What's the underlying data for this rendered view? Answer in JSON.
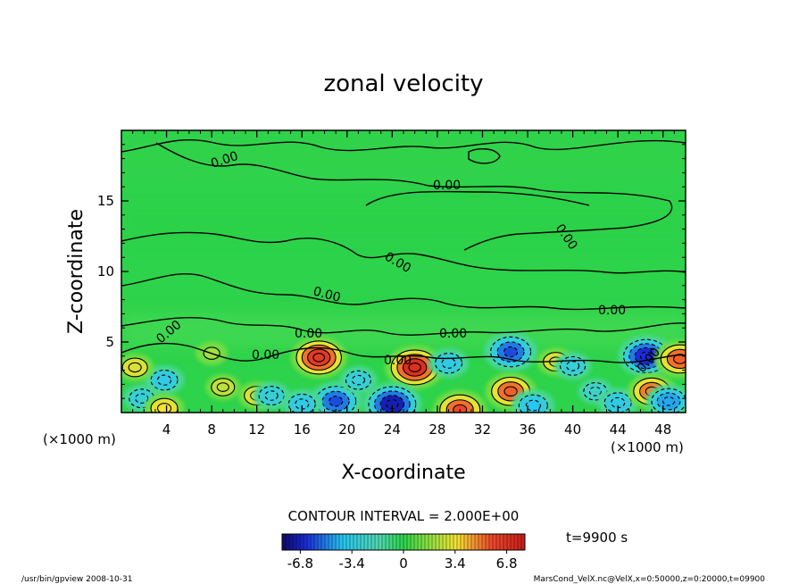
{
  "chart_data": {
    "type": "heatmap",
    "title": "zonal velocity",
    "xlabel": "X-coordinate",
    "ylabel": "Z-coordinate",
    "x_unit_left": "(×1000 m)",
    "x_unit_right": "(×1000 m)",
    "xlim": [
      0,
      50
    ],
    "ylim": [
      0,
      20
    ],
    "x_ticks": [
      4,
      8,
      12,
      16,
      20,
      24,
      28,
      32,
      36,
      40,
      44,
      48
    ],
    "y_ticks": [
      5,
      10,
      15
    ],
    "contour_interval_text": "CONTOUR INTERVAL = 2.000E+00",
    "contour_label_text": "0.00",
    "time_text": "t=9900 s",
    "colorbar": {
      "min": -8,
      "max": 8,
      "tick_labels": [
        "-6.8",
        "-3.4",
        "0",
        "3.4",
        "6.8"
      ],
      "tick_values": [
        -6.8,
        -3.4,
        0,
        3.4,
        6.8
      ]
    },
    "footer_left": "/usr/bin/gpview   2008-10-31",
    "footer_right": "MarsCond_VelX.nc@VelX,x=0:50000,z=0:20000,t=09900",
    "background_value": 0,
    "cells": [
      {
        "x": 3.8,
        "z": 2.3,
        "value": -3.5
      },
      {
        "x": 1.8,
        "z": 1.0,
        "value": -3.0
      },
      {
        "x": 3.8,
        "z": 0.3,
        "value": 3.5
      },
      {
        "x": 1.2,
        "z": 3.2,
        "value": 3.0
      },
      {
        "x": 9.0,
        "z": 1.8,
        "value": 2.5
      },
      {
        "x": 8.0,
        "z": 4.2,
        "value": 2.0
      },
      {
        "x": 12.0,
        "z": 1.2,
        "value": 3.0
      },
      {
        "x": 13.3,
        "z": 1.2,
        "value": -3.0
      },
      {
        "x": 17.5,
        "z": 3.9,
        "value": 6.5
      },
      {
        "x": 19.0,
        "z": 0.8,
        "value": -6.0
      },
      {
        "x": 16.0,
        "z": 0.6,
        "value": -3.5
      },
      {
        "x": 21.0,
        "z": 2.3,
        "value": -3.0
      },
      {
        "x": 26.0,
        "z": 3.2,
        "value": 7.0
      },
      {
        "x": 24.0,
        "z": 0.6,
        "value": -7.0
      },
      {
        "x": 30.0,
        "z": 0.2,
        "value": 6.0
      },
      {
        "x": 29.0,
        "z": 3.5,
        "value": -3.5
      },
      {
        "x": 34.5,
        "z": 4.3,
        "value": -6.0
      },
      {
        "x": 34.5,
        "z": 1.5,
        "value": 5.5
      },
      {
        "x": 36.5,
        "z": 0.5,
        "value": -4.0
      },
      {
        "x": 38.5,
        "z": 3.6,
        "value": 3.0
      },
      {
        "x": 40.0,
        "z": 3.3,
        "value": -3.0
      },
      {
        "x": 42.0,
        "z": 1.5,
        "value": -2.5
      },
      {
        "x": 44.0,
        "z": 0.7,
        "value": -3.5
      },
      {
        "x": 46.5,
        "z": 4.0,
        "value": -6.5
      },
      {
        "x": 47.0,
        "z": 1.5,
        "value": 5.0
      },
      {
        "x": 48.5,
        "z": 0.8,
        "value": -4.5
      },
      {
        "x": 49.5,
        "z": 3.8,
        "value": 5.5
      }
    ]
  }
}
